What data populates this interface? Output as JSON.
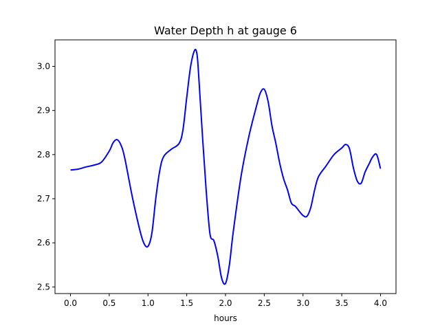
{
  "chart_data": {
    "type": "line",
    "title": "Water Depth h at gauge 6",
    "xlabel": "hours",
    "ylabel": "",
    "xlim": [
      -0.2,
      4.2
    ],
    "ylim": [
      2.485,
      3.06
    ],
    "xticks": [
      0.0,
      0.5,
      1.0,
      1.5,
      2.0,
      2.5,
      3.0,
      3.5,
      4.0
    ],
    "xtick_labels": [
      "0.0",
      "0.5",
      "1.0",
      "1.5",
      "2.0",
      "2.5",
      "3.0",
      "3.5",
      "4.0"
    ],
    "yticks": [
      2.5,
      2.6,
      2.7,
      2.8,
      2.9,
      3.0
    ],
    "ytick_labels": [
      "2.5",
      "2.6",
      "2.7",
      "2.8",
      "2.9",
      "3.0"
    ],
    "grid": false,
    "series": [
      {
        "color": "#0000ff",
        "x": [
          0.0,
          0.1,
          0.2,
          0.3,
          0.4,
          0.5,
          0.55,
          0.6,
          0.65,
          0.7,
          0.8,
          0.9,
          0.95,
          1.0,
          1.05,
          1.1,
          1.15,
          1.2,
          1.3,
          1.4,
          1.45,
          1.5,
          1.55,
          1.6,
          1.63,
          1.65,
          1.7,
          1.75,
          1.8,
          1.85,
          1.9,
          1.95,
          2.0,
          2.05,
          2.1,
          2.2,
          2.3,
          2.4,
          2.45,
          2.5,
          2.55,
          2.6,
          2.65,
          2.7,
          2.75,
          2.8,
          2.85,
          2.9,
          2.95,
          3.0,
          3.05,
          3.1,
          3.15,
          3.2,
          3.3,
          3.4,
          3.5,
          3.55,
          3.6,
          3.65,
          3.7,
          3.75,
          3.8,
          3.85,
          3.9,
          3.95,
          4.0
        ],
        "y": [
          2.765,
          2.767,
          2.772,
          2.776,
          2.783,
          2.808,
          2.827,
          2.834,
          2.822,
          2.792,
          2.702,
          2.625,
          2.598,
          2.592,
          2.622,
          2.7,
          2.762,
          2.795,
          2.812,
          2.825,
          2.855,
          2.93,
          3.0,
          3.036,
          3.03,
          2.99,
          2.85,
          2.72,
          2.62,
          2.605,
          2.57,
          2.52,
          2.508,
          2.55,
          2.625,
          2.75,
          2.84,
          2.91,
          2.94,
          2.948,
          2.92,
          2.865,
          2.825,
          2.78,
          2.745,
          2.72,
          2.69,
          2.683,
          2.672,
          2.662,
          2.66,
          2.68,
          2.72,
          2.75,
          2.775,
          2.8,
          2.815,
          2.823,
          2.813,
          2.77,
          2.74,
          2.735,
          2.76,
          2.778,
          2.795,
          2.8,
          2.768
        ]
      }
    ]
  }
}
